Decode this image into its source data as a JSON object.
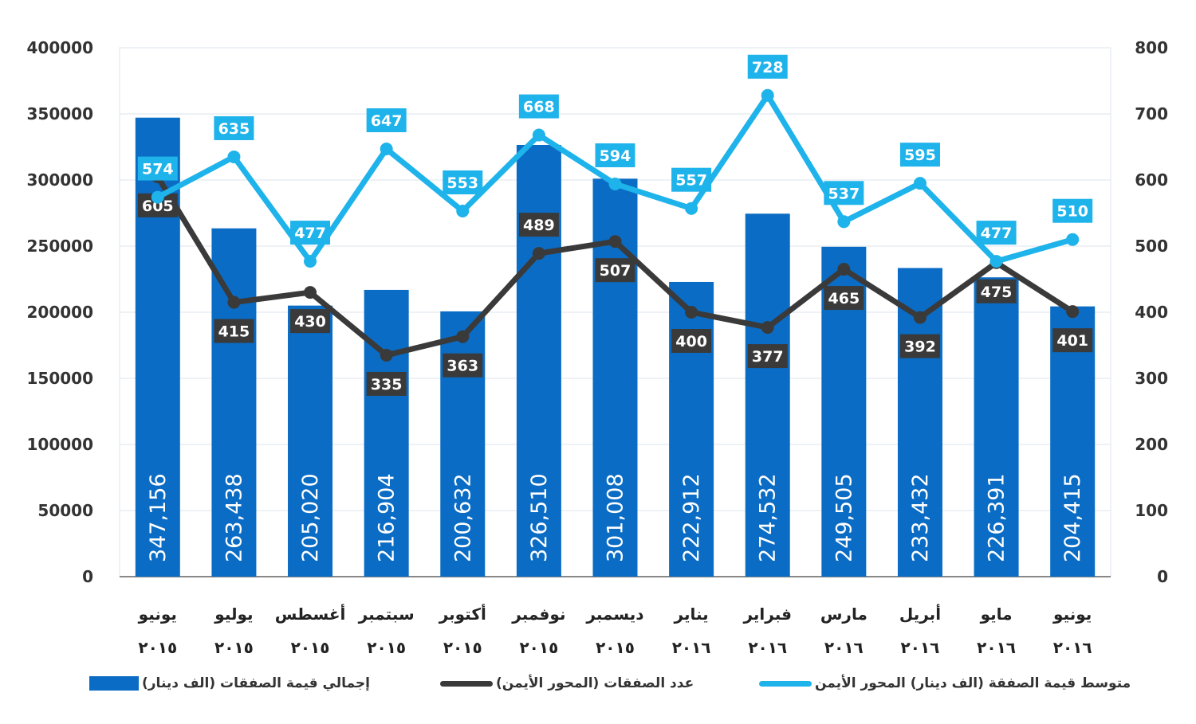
{
  "chart_data": {
    "type": "bar+line",
    "categories": [
      [
        "يونيو",
        "٢٠١٥"
      ],
      [
        "يوليو",
        "٢٠١٥"
      ],
      [
        "أغسطس",
        "٢٠١٥"
      ],
      [
        "سبتمبر",
        "٢٠١٥"
      ],
      [
        "أكتوبر",
        "٢٠١٥"
      ],
      [
        "نوفمبر",
        "٢٠١٥"
      ],
      [
        "ديسمبر",
        "٢٠١٥"
      ],
      [
        "يناير",
        "٢٠١٦"
      ],
      [
        "فبراير",
        "٢٠١٦"
      ],
      [
        "مارس",
        "٢٠١٦"
      ],
      [
        "أبريل",
        "٢٠١٦"
      ],
      [
        "مايو",
        "٢٠١٦"
      ],
      [
        "يونيو",
        "٢٠١٦"
      ]
    ],
    "left_axis": {
      "ylim": [
        0,
        400000
      ],
      "ticks": [
        0,
        50000,
        100000,
        150000,
        200000,
        250000,
        300000,
        350000,
        400000
      ]
    },
    "right_axis": {
      "ylim": [
        0,
        800
      ],
      "ticks": [
        0,
        100,
        200,
        300,
        400,
        500,
        600,
        700,
        800
      ]
    },
    "grid": true,
    "legend_position": "bottom",
    "series": [
      {
        "name": "إجمالي قيمة الصفقات (الف دينار)",
        "type": "bar",
        "axis": "left",
        "color": "#0a6cc4",
        "values": [
          347156,
          263438,
          205020,
          216904,
          200632,
          326510,
          301008,
          222912,
          274532,
          249505,
          233432,
          226391,
          204415
        ],
        "labels": [
          "347,156",
          "263,438",
          "205,020",
          "216,904",
          "200,632",
          "326,510",
          "301,008",
          "222,912",
          "274,532",
          "249,505",
          "233,432",
          "226,391",
          "204,415"
        ]
      },
      {
        "name": "عدد الصفقات (المحور الأيمن)",
        "type": "line",
        "axis": "right",
        "color": "#3a3a3a",
        "values": [
          605,
          415,
          430,
          335,
          363,
          489,
          507,
          400,
          377,
          465,
          392,
          475,
          401
        ]
      },
      {
        "name": "متوسط قيمة الصفقة (الف دينار) المحور الأيمن",
        "type": "line",
        "axis": "right",
        "color": "#1eb3ea",
        "values": [
          574,
          635,
          477,
          647,
          553,
          668,
          594,
          557,
          728,
          537,
          595,
          477,
          510
        ]
      }
    ]
  }
}
